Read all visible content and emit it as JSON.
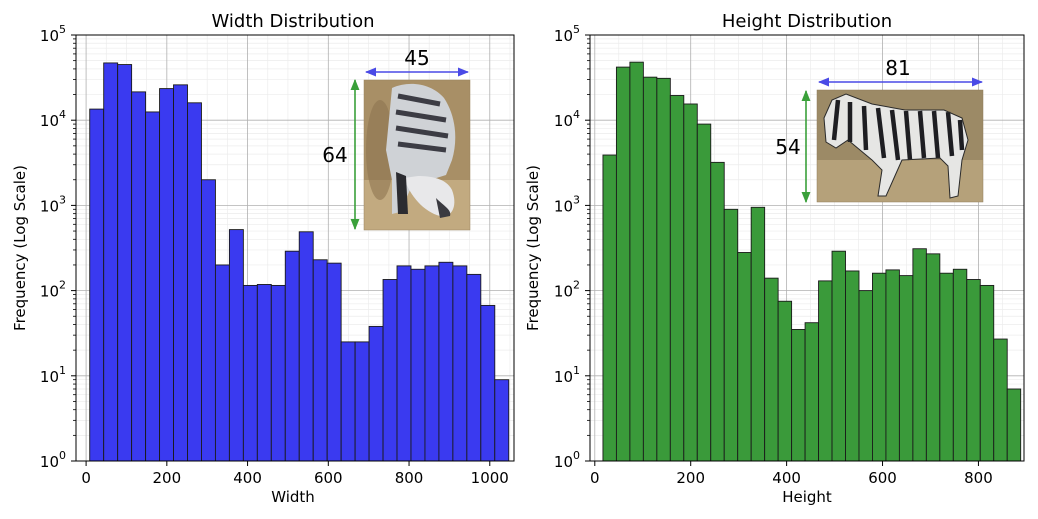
{
  "chart_data": [
    {
      "type": "bar",
      "title": "Width Distribution",
      "xlabel": "Width",
      "ylabel": "Frequency (Log Scale)",
      "yscale": "log",
      "ylim": [
        1,
        100000
      ],
      "xlim": [
        -25,
        1060
      ],
      "xticks": [
        "0",
        "200",
        "400",
        "600",
        "800",
        "1000"
      ],
      "yticks": [
        {
          "base": "10",
          "exp": "0"
        },
        {
          "base": "10",
          "exp": "1"
        },
        {
          "base": "10",
          "exp": "2"
        },
        {
          "base": "10",
          "exp": "3"
        },
        {
          "base": "10",
          "exp": "4"
        },
        {
          "base": "10",
          "exp": "5"
        }
      ],
      "bar_color": "#3a3af0",
      "bin_start": 9,
      "bin_width": 34.6,
      "values": [
        13500,
        47000,
        45000,
        21500,
        12500,
        23500,
        26000,
        16000,
        2000,
        200,
        520,
        115,
        118,
        115,
        290,
        490,
        230,
        210,
        25,
        25,
        38,
        135,
        195,
        178,
        195,
        215,
        195,
        155,
        67,
        9
      ],
      "inset": {
        "width_label": "45",
        "height_label": "64",
        "subject": "zebra-grazing"
      }
    },
    {
      "type": "bar",
      "title": "Height Distribution",
      "xlabel": "Height",
      "ylabel": "Frequency (Log Scale)",
      "yscale": "log",
      "ylim": [
        1,
        100000
      ],
      "xlim": [
        -10,
        895
      ],
      "xticks": [
        "0",
        "200",
        "400",
        "600",
        "800"
      ],
      "yticks": [
        {
          "base": "10",
          "exp": "0"
        },
        {
          "base": "10",
          "exp": "1"
        },
        {
          "base": "10",
          "exp": "2"
        },
        {
          "base": "10",
          "exp": "3"
        },
        {
          "base": "10",
          "exp": "4"
        },
        {
          "base": "10",
          "exp": "5"
        }
      ],
      "bar_color": "#3a9a3a",
      "bin_start": 17,
      "bin_width": 28.1,
      "values": [
        3900,
        42000,
        48000,
        32000,
        31000,
        19500,
        15500,
        9000,
        3200,
        900,
        280,
        950,
        140,
        75,
        35,
        42,
        130,
        290,
        170,
        100,
        160,
        175,
        150,
        310,
        270,
        160,
        178,
        135,
        115,
        27,
        7
      ],
      "inset": {
        "width_label": "81",
        "height_label": "54",
        "subject": "zebra-walking"
      }
    }
  ]
}
